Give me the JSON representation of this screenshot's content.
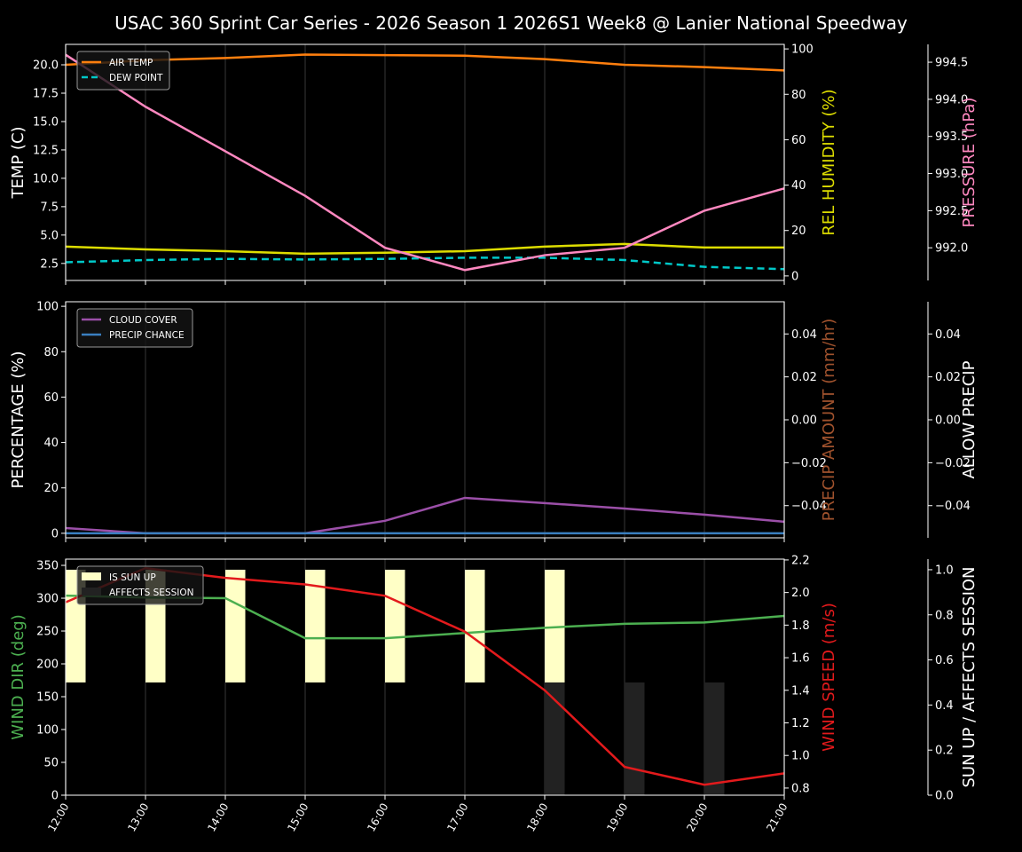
{
  "title": "USAC 360 Sprint Car Series - 2026 Season 1 2026S1 Week8 @ Lanier National Speedway",
  "chart_data": [
    {
      "type": "line",
      "x": [
        "12:00",
        "13:00",
        "14:00",
        "15:00",
        "16:00",
        "17:00",
        "18:00",
        "19:00",
        "20:00",
        "21:00"
      ],
      "grid": "vertical",
      "legend_position": "top-left",
      "axes": {
        "left": {
          "label": "TEMP (C)",
          "color": "#ffffff",
          "ylim": [
            1.0,
            21.8
          ],
          "ticks": [
            "2.5",
            "5.0",
            "7.5",
            "10.0",
            "12.5",
            "15.0",
            "17.5",
            "20.0"
          ]
        },
        "right": {
          "label": "REL HUMIDITY (%)",
          "color": "#dddd00",
          "ylim": [
            -2,
            102
          ],
          "ticks": [
            "0",
            "20",
            "40",
            "60",
            "80",
            "100"
          ]
        },
        "right2": {
          "label": "PRESSURE (hPa)",
          "color": "#ff88c0",
          "ylim": [
            991.56,
            994.74
          ],
          "ticks": [
            "992.0",
            "992.5",
            "993.0",
            "993.5",
            "994.0",
            "994.5"
          ]
        }
      },
      "series": [
        {
          "name": "AIR TEMP",
          "axis": "left",
          "color": "#ff7f0e",
          "dash": false,
          "legend": true,
          "values": [
            20.0,
            20.4,
            20.6,
            20.9,
            20.85,
            20.8,
            20.5,
            20.0,
            19.8,
            19.5
          ]
        },
        {
          "name": "DEW POINT",
          "axis": "left",
          "color": "#00c8c8",
          "dash": true,
          "legend": true,
          "values": [
            2.6,
            2.8,
            2.9,
            2.85,
            2.9,
            3.0,
            3.0,
            2.8,
            2.2,
            2.0
          ]
        },
        {
          "axis": "right",
          "color": "#dddd00",
          "dash": false,
          "legend": false,
          "values": [
            12.9,
            11.7,
            10.9,
            9.8,
            10.2,
            10.9,
            12.9,
            14.1,
            12.5,
            12.5
          ]
        },
        {
          "axis": "right2",
          "color": "#ff88c0",
          "dash": false,
          "legend": false,
          "values": [
            994.6,
            993.9,
            993.3,
            992.7,
            992.0,
            991.7,
            991.9,
            992.0,
            992.5,
            992.8
          ]
        }
      ]
    },
    {
      "type": "line",
      "x": [
        "12:00",
        "13:00",
        "14:00",
        "15:00",
        "16:00",
        "17:00",
        "18:00",
        "19:00",
        "20:00",
        "21:00"
      ],
      "grid": "vertical",
      "legend_position": "top-left",
      "axes": {
        "left": {
          "label": "PERCENTAGE (%)",
          "color": "#ffffff",
          "ylim": [
            -2,
            102
          ],
          "ticks": [
            "0",
            "20",
            "40",
            "60",
            "80",
            "100"
          ]
        },
        "right": {
          "label": "PRECIP AMOUNT (mm/hr)",
          "color": "#a0522d",
          "ylim": [
            -0.055,
            0.055
          ],
          "ticks": [
            "−0.04",
            "−0.02",
            "0.00",
            "0.02",
            "0.04"
          ]
        },
        "right2": {
          "label": "ALLOW PRECIP",
          "color": "#ffffff",
          "ylim": [
            -0.055,
            0.055
          ],
          "ticks": [
            "−0.04",
            "−0.02",
            "0.00",
            "0.02",
            "0.04"
          ]
        }
      },
      "series": [
        {
          "name": "CLOUD COVER",
          "axis": "left",
          "color": "#9b4fa8",
          "dash": false,
          "legend": true,
          "values": [
            2.3,
            0,
            0,
            0,
            5.5,
            15.6,
            13.3,
            10.9,
            8.2,
            5.1
          ]
        },
        {
          "name": "PRECIP CHANCE",
          "axis": "left",
          "color": "#3a7fc0",
          "dash": false,
          "legend": true,
          "values": [
            0,
            0,
            0,
            0,
            0,
            0,
            0,
            0,
            0,
            0
          ]
        }
      ]
    },
    {
      "type": "line+bar",
      "x": [
        "12:00",
        "13:00",
        "14:00",
        "15:00",
        "16:00",
        "17:00",
        "18:00",
        "19:00",
        "20:00",
        "21:00"
      ],
      "grid": "vertical",
      "legend_position": "top-left",
      "axes": {
        "left": {
          "label": "WIND DIR (deg)",
          "color": "#4caf50",
          "ylim": [
            0,
            359.5
          ],
          "ticks": [
            "0",
            "50",
            "100",
            "150",
            "200",
            "250",
            "300",
            "350"
          ]
        },
        "right": {
          "label": "WIND SPEED (m/s)",
          "color": "#e31a1c",
          "ylim": [
            0.756,
            2.205
          ],
          "ticks": [
            "0.8",
            "1.0",
            "1.2",
            "1.4",
            "1.6",
            "1.8",
            "2.0",
            "2.2"
          ]
        },
        "right2": {
          "label": "SUN UP / AFFECTS SESSION",
          "color": "#ffffff",
          "ylim": [
            0,
            1.047
          ],
          "ticks": [
            "0.0",
            "0.2",
            "0.4",
            "0.6",
            "0.8",
            "1.0"
          ]
        }
      },
      "bars": [
        {
          "name": "IS SUN UP",
          "color": "#ffffc6",
          "range": [
            0.5,
            1.0
          ],
          "values": [
            1,
            1,
            1,
            1,
            1,
            1,
            1,
            0,
            0,
            0
          ]
        },
        {
          "name": "AFFECTS SESSION",
          "color": "#222222",
          "range": [
            0,
            0.5
          ],
          "values": [
            0,
            0,
            0,
            0,
            0,
            0,
            1,
            1,
            1,
            0
          ]
        }
      ],
      "series": [
        {
          "axis": "left",
          "color": "#4caf50",
          "dash": false,
          "legend": false,
          "values": [
            304,
            301,
            300,
            239,
            239,
            247,
            255,
            261,
            263,
            273
          ]
        },
        {
          "axis": "right",
          "color": "#e31a1c",
          "dash": false,
          "legend": false,
          "values": [
            1.94,
            2.15,
            2.09,
            2.05,
            1.98,
            1.76,
            1.4,
            0.93,
            0.82,
            0.89
          ]
        }
      ]
    }
  ]
}
